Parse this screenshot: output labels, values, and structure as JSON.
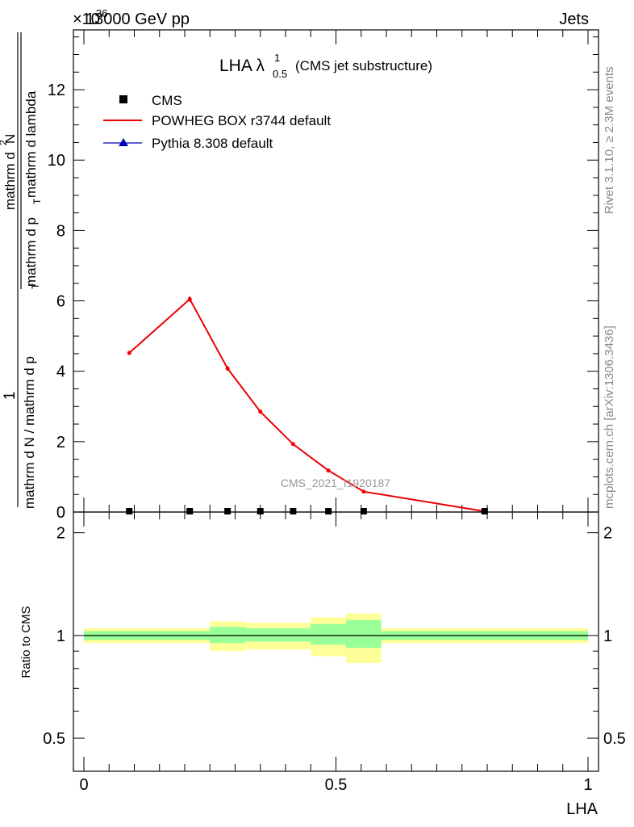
{
  "header": {
    "left_label": "13000 GeV pp",
    "right_label": "Jets",
    "exponent_label": "×10",
    "exponent_power": "36"
  },
  "side_labels": {
    "rivet": "Rivet 3.1.10, ≥ 2.3M events",
    "mcplots": "mcplots.cern.ch [arXiv:1306.3436]"
  },
  "watermark": "CMS_2021_I1920187",
  "main_plot": {
    "title_main": "LHA λ",
    "title_sup": "1",
    "title_sub": "0.5",
    "title_tail": "(CMS jet substructure)",
    "ylabel_top_numer": "1",
    "ylabel_top_denom": "mathrm d N / mathrm d p",
    "ylabel_top_denom_sub": "T",
    "ylabel_numer": "mathrm d",
    "ylabel_numer_sup": "2",
    "ylabel_numer_tail": "N",
    "ylabel_denom": "mathrm d p",
    "ylabel_denom_sub": "T",
    "ylabel_denom_tail": "mathrm d lambda",
    "ylabel_ticks": [
      "0",
      "2",
      "4",
      "6",
      "8",
      "10",
      "12"
    ],
    "legend": [
      {
        "label": "CMS",
        "marker": "square",
        "color": "#000000"
      },
      {
        "label": "POWHEG BOX r3744 default",
        "marker": "line",
        "color": "#ee0000"
      },
      {
        "label": "Pythia 8.308 default",
        "marker": "triangle",
        "color": "#0000bb"
      }
    ]
  },
  "ratio_plot": {
    "ylabel": "Ratio to CMS",
    "ytick_labels": [
      "0.5",
      "1",
      "2"
    ],
    "xlabel": "LHA",
    "xtick_labels": [
      "0",
      "0.5",
      "1"
    ]
  },
  "chart_data": {
    "type": "line",
    "x_axis": {
      "label": "LHA",
      "range": [
        0,
        1
      ]
    },
    "y_axis": {
      "range": [
        0,
        13.7
      ],
      "scale_factor": "1e36"
    },
    "ratio_y_axis": {
      "range": [
        0.4,
        2.3
      ],
      "scale": "log"
    },
    "series": [
      {
        "name": "CMS",
        "kind": "points",
        "color": "#000000",
        "x": [
          0.09,
          0.21,
          0.285,
          0.35,
          0.415,
          0.485,
          0.555,
          0.795
        ],
        "y": [
          0.02,
          0.02,
          0.02,
          0.02,
          0.02,
          0.02,
          0.02,
          0.02
        ]
      },
      {
        "name": "POWHEG BOX r3744 default",
        "kind": "line",
        "color": "#ee0000",
        "x": [
          0.09,
          0.21,
          0.285,
          0.35,
          0.415,
          0.485,
          0.555,
          0.795
        ],
        "y": [
          4.52,
          6.05,
          4.08,
          2.85,
          1.93,
          1.18,
          0.58,
          0.02
        ],
        "err": [
          0.06,
          0.08,
          0.07,
          0.05,
          0.04,
          0.03,
          0.02,
          0.01
        ]
      }
    ],
    "ratio_bands": {
      "bin_edges": [
        0.0,
        0.25,
        0.32,
        0.38,
        0.45,
        0.52,
        0.59,
        1.0
      ],
      "inner_lo": [
        0.97,
        0.95,
        0.96,
        0.96,
        0.94,
        0.92,
        0.97
      ],
      "inner_hi": [
        1.03,
        1.06,
        1.05,
        1.05,
        1.08,
        1.11,
        1.03
      ],
      "outer_lo": [
        0.95,
        0.9,
        0.91,
        0.91,
        0.87,
        0.83,
        0.95
      ],
      "outer_hi": [
        1.05,
        1.1,
        1.09,
        1.09,
        1.13,
        1.16,
        1.05
      ],
      "inner_color": "#99ff99",
      "outer_color": "#ffff99",
      "reference": 1
    }
  }
}
